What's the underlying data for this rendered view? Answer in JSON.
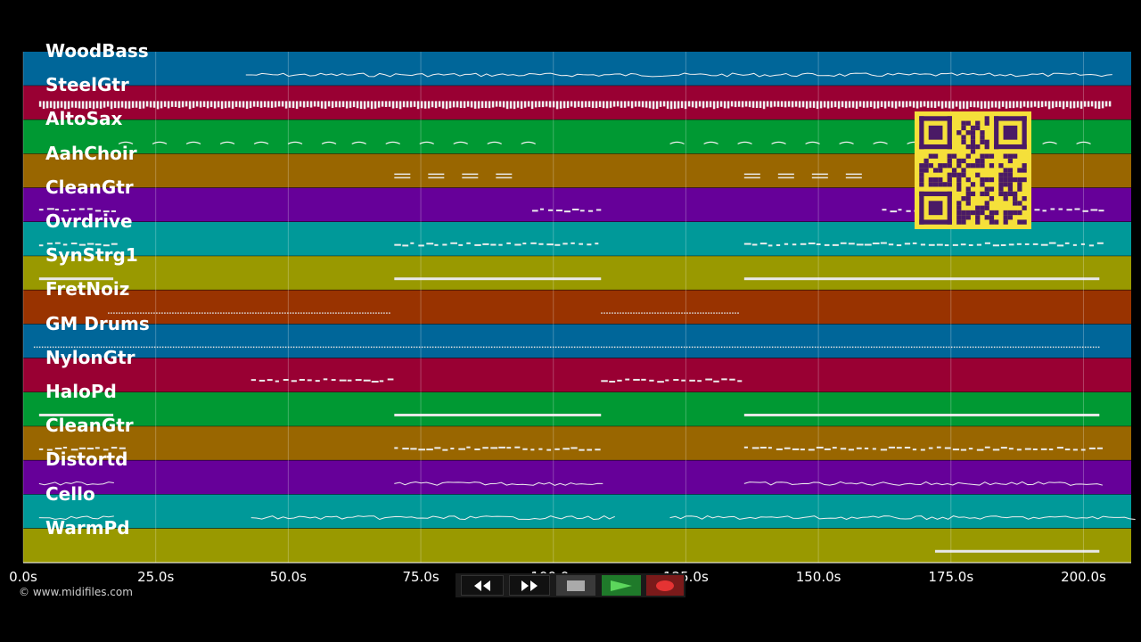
{
  "tracks": [
    {
      "name": "WoodBass",
      "color": "#006699",
      "notes": "line",
      "segments": [
        [
          42,
          205
        ]
      ]
    },
    {
      "name": "SteelGtr",
      "color": "#990033",
      "notes": "dense",
      "segments": [
        [
          3,
          205
        ]
      ]
    },
    {
      "name": "AltoSax",
      "color": "#009933",
      "notes": "arcs",
      "segments": [
        [
          18,
          58
        ],
        [
          62,
          100
        ],
        [
          122,
          205
        ]
      ]
    },
    {
      "name": "AahChoir",
      "color": "#996600",
      "notes": "pairs",
      "segments": [
        [
          70,
          93
        ],
        [
          136,
          159
        ]
      ]
    },
    {
      "name": "CleanGtr",
      "color": "#660099",
      "notes": "dash",
      "segments": [
        [
          3,
          17
        ],
        [
          96,
          109
        ],
        [
          162,
          203
        ]
      ]
    },
    {
      "name": "Ovrdrive",
      "color": "#009999",
      "notes": "dash",
      "segments": [
        [
          3,
          17
        ],
        [
          70,
          109
        ],
        [
          136,
          203
        ]
      ]
    },
    {
      "name": "SynStrg1",
      "color": "#999900",
      "notes": "bar",
      "segments": [
        [
          3,
          17
        ],
        [
          70,
          109
        ],
        [
          136,
          203
        ]
      ]
    },
    {
      "name": "FretNoiz",
      "color": "#993300",
      "notes": "dots",
      "segments": [
        [
          16,
          69
        ],
        [
          109,
          135
        ]
      ]
    },
    {
      "name": "GM Drums",
      "color": "#006699",
      "notes": "dots",
      "segments": [
        [
          2,
          203
        ]
      ]
    },
    {
      "name": "NylonGtr",
      "color": "#990033",
      "notes": "dash",
      "segments": [
        [
          43,
          70
        ],
        [
          109,
          135
        ]
      ]
    },
    {
      "name": "HaloPd",
      "color": "#009933",
      "notes": "bar",
      "segments": [
        [
          3,
          17
        ],
        [
          70,
          109
        ],
        [
          136,
          203
        ]
      ]
    },
    {
      "name": "CleanGtr",
      "color": "#996600",
      "notes": "dash",
      "segments": [
        [
          3,
          19
        ],
        [
          70,
          109
        ],
        [
          136,
          203
        ]
      ]
    },
    {
      "name": "Distortd",
      "color": "#660099",
      "notes": "line",
      "segments": [
        [
          3,
          17
        ],
        [
          70,
          109
        ],
        [
          136,
          203
        ]
      ]
    },
    {
      "name": "Cello",
      "color": "#009999",
      "notes": "line",
      "segments": [
        [
          3,
          17
        ],
        [
          43,
          111
        ],
        [
          122,
          209
        ]
      ]
    },
    {
      "name": "WarmPd",
      "color": "#999900",
      "notes": "bar",
      "segments": [
        [
          172,
          203
        ]
      ]
    }
  ],
  "timeline": {
    "max_seconds": 209,
    "ticks": [
      "0.0s",
      "25.0s",
      "50.0s",
      "75.0s",
      "100.0s",
      "125.0s",
      "150.0s",
      "175.0s",
      "200.0s"
    ],
    "tick_values": [
      0,
      25,
      50,
      75,
      100,
      125,
      150,
      175,
      200
    ]
  },
  "copyright": "© www.midifiles.com",
  "transport": {
    "rewind": "rewind-icon",
    "fast_forward": "fast-forward-icon",
    "stop": "stop-icon",
    "play": "play-icon",
    "record": "record-icon"
  },
  "qr": "qr-code"
}
